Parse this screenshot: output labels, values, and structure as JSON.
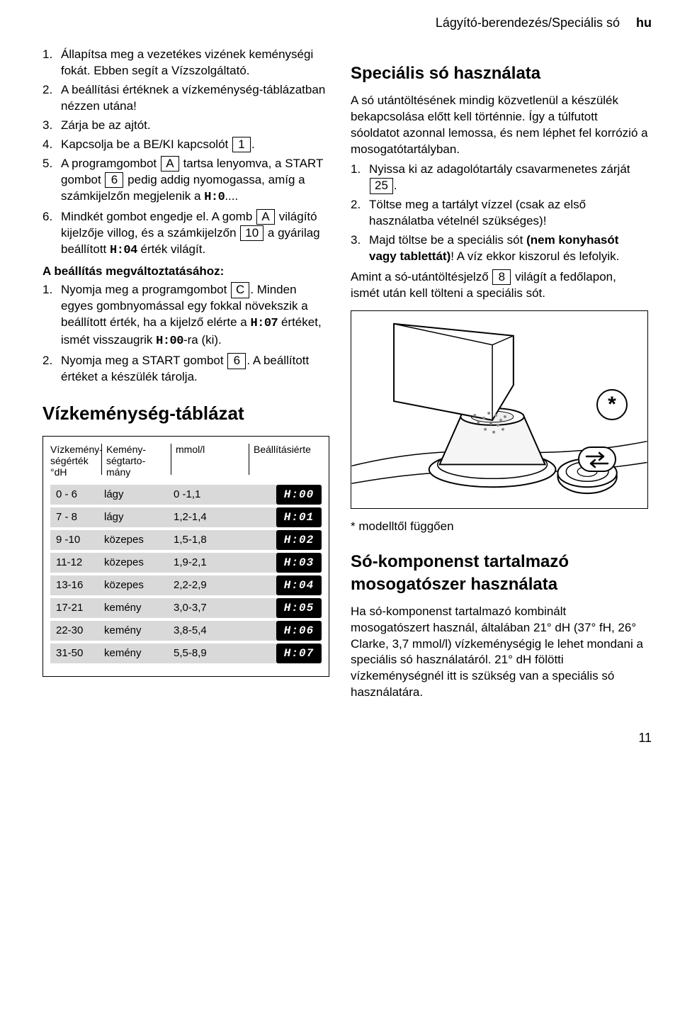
{
  "header": {
    "section": "Lágyító-berendezés/Speciális só",
    "lang": "hu"
  },
  "left": {
    "steps": [
      "Állapítsa meg a vezetékes vizének keménységi fokát. Ebben segít a Vízszolgáltató.",
      "A beállítási értéknek a vízkeménység-táblázatban nézzen utána!",
      "Zárja be az ajtót.",
      "Kapcsolja be a BE/KI kapcsolót <BOX>1</BOX>.",
      "A programgombot <BOX>A</BOX> tartsa lenyomva, a START gombot <BOX>6</BOX> pedig addig nyomogassa, amíg a számkijelzőn megjelenik a <SEG>H:0</SEG>....",
      "Mindkét gombot engedje el. A gomb <BOX>A</BOX> világító kijelzője villog, és a számkijelzőn <BOX>10</BOX> a gyárilag beállított <SEG>H:04</SEG> érték világít."
    ],
    "subhead": "A beállítás megváltoztatásához:",
    "steps2": [
      "Nyomja meg a programgombot <BOX>C</BOX>. Minden egyes gombnyomással egy fokkal növekszik a beállított érték, ha a kijelző elérte a <SEG>H:07</SEG> értéket, ismét visszaugrik <SEG>H:00</SEG>-ra (ki).",
      "Nyomja meg a START gombot <BOX>6</BOX>. A beállított értéket a készülék tárolja."
    ],
    "table_title": "Vízkeménység-táblázat",
    "table": {
      "headers": [
        "Vízkemény-\nségérték\n°dH",
        "Kemény-\nségtarto-\nmány",
        "mmol/l",
        "Beállításiérte"
      ],
      "rows": [
        {
          "dh": "0 - 6",
          "range": "lágy",
          "mmol": "0 -1,1",
          "code": "H:00"
        },
        {
          "dh": "7 - 8",
          "range": "lágy",
          "mmol": "1,2-1,4",
          "code": "H:01"
        },
        {
          "dh": "9 -10",
          "range": "közepes",
          "mmol": "1,5-1,8",
          "code": "H:02"
        },
        {
          "dh": "11-12",
          "range": "közepes",
          "mmol": "1,9-2,1",
          "code": "H:03"
        },
        {
          "dh": "13-16",
          "range": "közepes",
          "mmol": "2,2-2,9",
          "code": "H:04"
        },
        {
          "dh": "17-21",
          "range": "kemény",
          "mmol": "3,0-3,7",
          "code": "H:05"
        },
        {
          "dh": "22-30",
          "range": "kemény",
          "mmol": "3,8-5,4",
          "code": "H:06"
        },
        {
          "dh": "31-50",
          "range": "kemény",
          "mmol": "5,5-8,9",
          "code": "H:07"
        }
      ]
    }
  },
  "right": {
    "h1": "Speciális só használata",
    "p1": "A só utántöltésének mindig közvetlenül a készülék bekapcsolása előtt kell történnie. Így a túlfutott sóoldatot azonnal lemossa, és nem léphet fel korrózió a mosogatótartályban.",
    "steps": [
      "Nyissa ki az adagolótartály csavarmenetes zárját <BOX>25</BOX>.",
      "Töltse meg a tartályt vízzel (csak az első használatba vételnél szükséges)!",
      "Majd töltse be a speciális sót <b>(nem konyhasót vagy tablettát)</b>! A víz ekkor kiszorul és lefolyik."
    ],
    "p2": "Amint a só-utántöltésjelző <BOX>8</BOX> világít a fedőlapon, ismét után kell tölteni a speciális sót.",
    "footnote": "* modelltől függően",
    "h2": "Só-komponenst tartalmazó mosogatószer használata",
    "p3": "Ha só-komponenst tartalmazó kombinált mosogatószert használ, általában 21° dH (37° fH, 26° Clarke, 3,7 mmol/l) vízkeménységig le lehet mondani a speciális só használatáról. 21° dH fölötti vízkeménységnél itt is szükség van a speciális só használatára."
  },
  "page_number": "11",
  "colors": {
    "row_bg": "#d9d9d9",
    "code_bg": "#000000",
    "code_fg": "#ffffff"
  }
}
